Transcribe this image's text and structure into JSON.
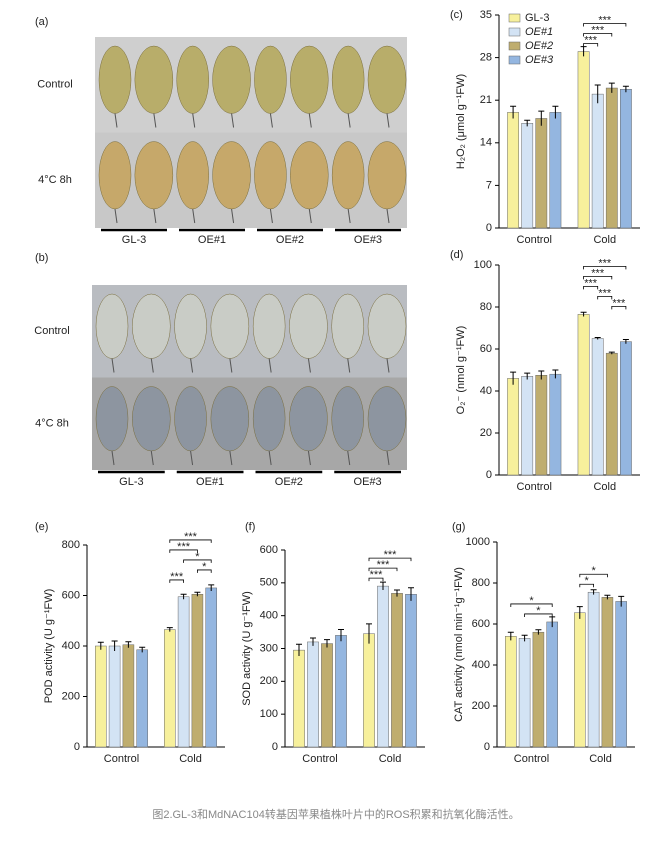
{
  "photos": [
    {
      "panel": "(a)",
      "rows": [
        "Control",
        "4°C 8h"
      ],
      "groups": [
        "GL-3",
        "OE#1",
        "OE#2",
        "OE#3"
      ]
    },
    {
      "panel": "(b)",
      "rows": [
        "Control",
        "4°C 8h"
      ],
      "groups": [
        "GL-3",
        "OE#1",
        "OE#2",
        "OE#3"
      ]
    }
  ],
  "chart_data": [
    {
      "type": "bar",
      "panel": "(c)",
      "ylabel": "H₂O₂ (μmol g⁻¹FW)",
      "categories": [
        "Control",
        "Cold"
      ],
      "legend": "upper left",
      "series": [
        {
          "name": "GL-3",
          "color": "#f7f09c",
          "values": [
            19,
            29
          ],
          "errors": [
            1,
            0.8
          ]
        },
        {
          "name": "OE#1",
          "color": "#d3e3f4",
          "values": [
            17.2,
            22
          ],
          "errors": [
            0.5,
            1.5
          ]
        },
        {
          "name": "OE#2",
          "color": "#bfad6e",
          "values": [
            18,
            23
          ],
          "errors": [
            1.2,
            0.8
          ]
        },
        {
          "name": "OE#3",
          "color": "#94b6e0",
          "values": [
            19,
            22.8
          ],
          "errors": [
            1,
            0.5
          ]
        }
      ],
      "ylim": [
        0,
        35
      ],
      "yticks": [
        0,
        7,
        14,
        21,
        28,
        35
      ],
      "significance": [
        {
          "label": "***",
          "group": 1,
          "bars": [
            0,
            1
          ]
        },
        {
          "label": "***",
          "group": 1,
          "bars": [
            0,
            2
          ]
        },
        {
          "label": "***",
          "group": 1,
          "bars": [
            0,
            3
          ]
        }
      ]
    },
    {
      "type": "bar",
      "panel": "(d)",
      "ylabel": "O₂⁻ (nmol g⁻¹FW)",
      "categories": [
        "Control",
        "Cold"
      ],
      "series": [
        {
          "color": "#f7f09c",
          "values": [
            46,
            76.5
          ],
          "errors": [
            3,
            1
          ]
        },
        {
          "color": "#d3e3f4",
          "values": [
            47,
            65
          ],
          "errors": [
            1.5,
            0.5
          ]
        },
        {
          "color": "#bfad6e",
          "values": [
            47.5,
            58
          ],
          "errors": [
            2,
            0.5
          ]
        },
        {
          "color": "#94b6e0",
          "values": [
            48,
            63.5
          ],
          "errors": [
            2,
            1
          ]
        }
      ],
      "ylim": [
        0,
        100
      ],
      "yticks": [
        0,
        20,
        40,
        60,
        80,
        100
      ],
      "significance": [
        {
          "label": "***",
          "group": 1,
          "bars": [
            2,
            3
          ]
        },
        {
          "label": "***",
          "group": 1,
          "bars": [
            1,
            2
          ]
        },
        {
          "label": "***",
          "group": 1,
          "bars": [
            0,
            1
          ]
        },
        {
          "label": "***",
          "group": 1,
          "bars": [
            0,
            2
          ]
        },
        {
          "label": "***",
          "group": 1,
          "bars": [
            0,
            3
          ]
        }
      ]
    },
    {
      "type": "bar",
      "panel": "(e)",
      "ylabel": "POD activity (U g⁻¹FW)",
      "categories": [
        "Control",
        "Cold"
      ],
      "series": [
        {
          "color": "#f7f09c",
          "values": [
            400,
            465
          ],
          "errors": [
            15,
            8
          ]
        },
        {
          "color": "#d3e3f4",
          "values": [
            400,
            595
          ],
          "errors": [
            20,
            10
          ]
        },
        {
          "color": "#bfad6e",
          "values": [
            405,
            605
          ],
          "errors": [
            12,
            8
          ]
        },
        {
          "color": "#94b6e0",
          "values": [
            385,
            630
          ],
          "errors": [
            10,
            12
          ]
        }
      ],
      "ylim": [
        0,
        800
      ],
      "yticks": [
        0,
        200,
        400,
        600,
        800
      ],
      "significance": [
        {
          "label": "***",
          "group": 1,
          "bars": [
            0,
            1
          ]
        },
        {
          "label": "*",
          "group": 1,
          "bars": [
            2,
            3
          ]
        },
        {
          "label": "*",
          "group": 1,
          "bars": [
            1,
            3
          ]
        },
        {
          "label": "***",
          "group": 1,
          "bars": [
            0,
            2
          ]
        },
        {
          "label": "***",
          "group": 1,
          "bars": [
            0,
            3
          ]
        }
      ]
    },
    {
      "type": "bar",
      "panel": "(f)",
      "ylabel": "SOD activity (U g⁻¹FW)",
      "categories": [
        "Control",
        "Cold"
      ],
      "series": [
        {
          "color": "#f7f09c",
          "values": [
            295,
            345
          ],
          "errors": [
            18,
            30
          ]
        },
        {
          "color": "#d3e3f4",
          "values": [
            320,
            490
          ],
          "errors": [
            12,
            12
          ]
        },
        {
          "color": "#bfad6e",
          "values": [
            315,
            468
          ],
          "errors": [
            12,
            10
          ]
        },
        {
          "color": "#94b6e0",
          "values": [
            340,
            465
          ],
          "errors": [
            18,
            20
          ]
        }
      ],
      "ylim": [
        0,
        600
      ],
      "yticks": [
        0,
        100,
        200,
        300,
        400,
        500,
        600
      ],
      "significance": [
        {
          "label": "***",
          "group": 1,
          "bars": [
            0,
            1
          ]
        },
        {
          "label": "***",
          "group": 1,
          "bars": [
            0,
            2
          ]
        },
        {
          "label": "***",
          "group": 1,
          "bars": [
            0,
            3
          ]
        }
      ]
    },
    {
      "type": "bar",
      "panel": "(g)",
      "ylabel": "CAT activity (nmol min⁻¹g⁻¹FW)",
      "categories": [
        "Control",
        "Cold"
      ],
      "series": [
        {
          "color": "#f7f09c",
          "values": [
            540,
            655
          ],
          "errors": [
            20,
            30
          ]
        },
        {
          "color": "#d3e3f4",
          "values": [
            530,
            755
          ],
          "errors": [
            15,
            12
          ]
        },
        {
          "color": "#bfad6e",
          "values": [
            560,
            730
          ],
          "errors": [
            12,
            10
          ]
        },
        {
          "color": "#94b6e0",
          "values": [
            610,
            710
          ],
          "errors": [
            25,
            25
          ]
        }
      ],
      "ylim": [
        0,
        1000
      ],
      "yticks": [
        0,
        200,
        400,
        600,
        800,
        1000
      ],
      "significance": [
        {
          "label": "*",
          "group": 0,
          "bars": [
            1,
            3
          ]
        },
        {
          "label": "*",
          "group": 0,
          "bars": [
            0,
            3
          ]
        },
        {
          "label": "*",
          "group": 1,
          "bars": [
            0,
            1
          ]
        },
        {
          "label": "*",
          "group": 1,
          "bars": [
            0,
            2
          ]
        }
      ]
    }
  ],
  "caption": "图2.GL-3和MdNAC104转基因苹果植株叶片中的ROS积累和抗氧化酶活性。"
}
